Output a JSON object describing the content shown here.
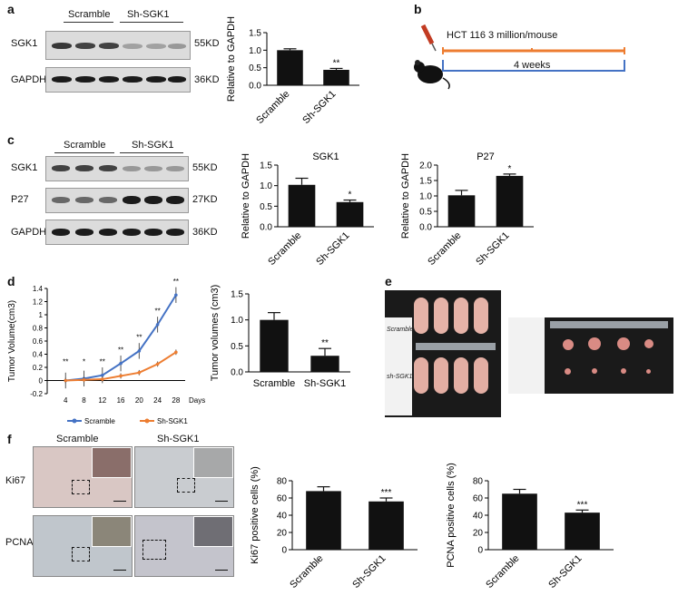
{
  "panels": {
    "a": "a",
    "b": "b",
    "c": "c",
    "d": "d",
    "e": "e",
    "f": "f"
  },
  "panel_a": {
    "groups": [
      "Scramble",
      "Sh-SGK1"
    ],
    "rows": [
      "SGK1",
      "GAPDH"
    ],
    "sizes": [
      "55KD",
      "36KD"
    ]
  },
  "panel_b": {
    "cell_line": "HCT 116",
    "dose": "3 million/mouse",
    "duration": "4 weeks"
  },
  "panel_c": {
    "groups": [
      "Scramble",
      "Sh-SGK1"
    ],
    "rows": [
      "SGK1",
      "P27",
      "GAPDH"
    ],
    "sizes": [
      "55KD",
      "27KD",
      "36KD"
    ]
  },
  "panel_e": {
    "label_scramble": "Scramble",
    "label_shsgk1": "sh-SGK1"
  },
  "panel_f": {
    "columns": [
      "Scramble",
      "Sh-SGK1"
    ],
    "rows": [
      "Ki67",
      "PCNA"
    ]
  },
  "chart_data": [
    {
      "id": "a_bar",
      "type": "bar",
      "categories": [
        "Scramble",
        "Sh-SGK1"
      ],
      "values": [
        1.0,
        0.44
      ],
      "errors": [
        0.04,
        0.04
      ],
      "significance": [
        "",
        "**"
      ],
      "ylabel": "Relative to GAPDH",
      "ylim": [
        0,
        1.5
      ],
      "yticks": [
        "0.0",
        "0.5",
        "1.0",
        "1.5"
      ],
      "title": ""
    },
    {
      "id": "c_sgk1",
      "type": "bar",
      "categories": [
        "Scramble",
        "Sh-SGK1"
      ],
      "values": [
        1.02,
        0.6
      ],
      "errors": [
        0.16,
        0.05
      ],
      "significance": [
        "",
        "*"
      ],
      "ylabel": "Relative to GAPDH",
      "ylim": [
        0,
        1.5
      ],
      "yticks": [
        "0.0",
        "0.5",
        "1.0",
        "1.5"
      ],
      "title": "SGK1"
    },
    {
      "id": "c_p27",
      "type": "bar",
      "categories": [
        "Scramble",
        "Sh-SGK1"
      ],
      "values": [
        1.02,
        1.65
      ],
      "errors": [
        0.16,
        0.06
      ],
      "significance": [
        "",
        "*"
      ],
      "ylabel": "Relative to GAPDH",
      "ylim": [
        0,
        2.0
      ],
      "yticks": [
        "0.0",
        "0.5",
        "1.0",
        "1.5",
        "2.0"
      ],
      "title": "P27"
    },
    {
      "id": "d_line",
      "type": "line",
      "x": [
        4,
        8,
        12,
        16,
        20,
        24,
        28
      ],
      "xlabel": "Days",
      "ylabel": "Tumor Volume(cm3)",
      "ylim": [
        -0.2,
        1.4
      ],
      "yticks": [
        "-0.2",
        "0",
        "0.2",
        "0.4",
        "0.6",
        "0.8",
        "1",
        "1.2",
        "1.4"
      ],
      "series": [
        {
          "name": "Scramble",
          "values": [
            0.0,
            0.03,
            0.08,
            0.26,
            0.45,
            0.85,
            1.3
          ],
          "color": "#4472c4"
        },
        {
          "name": "Sh-SGK1",
          "values": [
            0.0,
            0.01,
            0.02,
            0.07,
            0.12,
            0.25,
            0.43
          ],
          "color": "#ed7d31"
        }
      ],
      "significance": [
        "**",
        "*",
        "**",
        "**",
        "**",
        "**",
        "**"
      ]
    },
    {
      "id": "d_bar",
      "type": "bar",
      "categories": [
        "Scramble",
        "Sh-SGK1"
      ],
      "values": [
        1.0,
        0.31
      ],
      "errors": [
        0.14,
        0.14
      ],
      "significance": [
        "",
        "**"
      ],
      "ylabel": "Tumor volumes (cm3)",
      "ylim": [
        0,
        1.5
      ],
      "yticks": [
        "0.0",
        "0.5",
        "1.0",
        "1.5"
      ],
      "title": ""
    },
    {
      "id": "f_ki67",
      "type": "bar",
      "categories": [
        "Scramble",
        "Sh-SGK1"
      ],
      "values": [
        68,
        56
      ],
      "errors": [
        5,
        4
      ],
      "significance": [
        "",
        "***"
      ],
      "ylabel": "Ki67 positive cells (%)",
      "ylim": [
        0,
        80
      ],
      "yticks": [
        "0",
        "20",
        "40",
        "60",
        "80"
      ],
      "title": ""
    },
    {
      "id": "f_pcna",
      "type": "bar",
      "categories": [
        "Scramble",
        "Sh-SGK1"
      ],
      "values": [
        65,
        43
      ],
      "errors": [
        5,
        3
      ],
      "significance": [
        "",
        "***"
      ],
      "ylabel": "PCNA positive cells (%)",
      "ylim": [
        0,
        80
      ],
      "yticks": [
        "0",
        "20",
        "40",
        "60",
        "80"
      ],
      "title": ""
    }
  ]
}
